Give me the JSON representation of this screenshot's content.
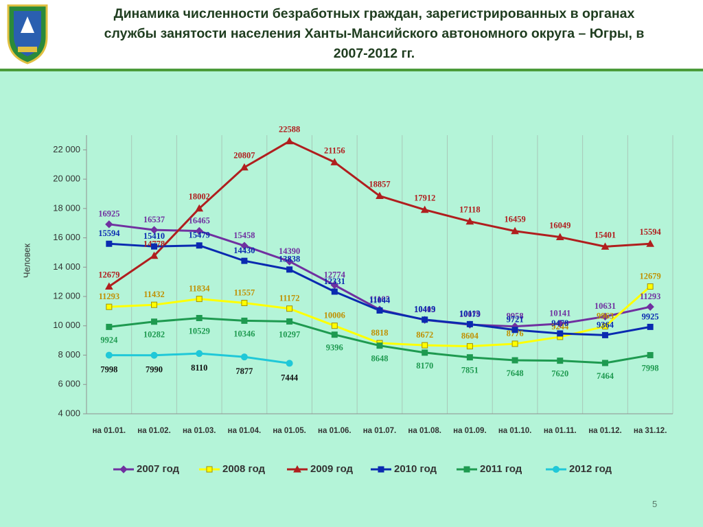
{
  "title": "Динамика численности безработных граждан, зарегистрированных в органах службы занятости населения Ханты-Мансийского автономного округа – Югры, в  2007-2012 гг.",
  "page_number": "5",
  "chart_data": {
    "type": "line",
    "y_label": "Человек",
    "categories": [
      "на 01.01.",
      "на 01.02.",
      "на 01.03.",
      "на 01.04.",
      "на 01.05.",
      "на 01.06.",
      "на 01.07.",
      "на 01.08.",
      "на 01.09.",
      "на 01.10.",
      "на 01.11.",
      "на 01.12.",
      "на 31.12."
    ],
    "ylim": [
      4000,
      23000
    ],
    "yticks": [
      {
        "value": 4000,
        "label": "4 000"
      },
      {
        "value": 6000,
        "label": "6 000"
      },
      {
        "value": 8000,
        "label": "8 000"
      },
      {
        "value": 10000,
        "label": "10 000"
      },
      {
        "value": 12000,
        "label": "12 000"
      },
      {
        "value": 14000,
        "label": "14 000"
      },
      {
        "value": 16000,
        "label": "16 000"
      },
      {
        "value": 18000,
        "label": "18 000"
      },
      {
        "value": 20000,
        "label": "20 000"
      },
      {
        "value": 22000,
        "label": "22 000"
      }
    ],
    "legend": "bottom",
    "series": [
      {
        "name": "2007 год",
        "color": "#7030a0",
        "marker": "diamond",
        "values": [
          16925,
          16537,
          16465,
          15458,
          14390,
          12774,
          11105,
          10403,
          10079,
          9958,
          10141,
          10631,
          11293
        ]
      },
      {
        "name": "2008 год",
        "color": "#ffff00",
        "marker": "square",
        "values": [
          11293,
          11432,
          11834,
          11557,
          11172,
          10006,
          8818,
          8672,
          8604,
          8776,
          9244,
          9963,
          12679
        ]
      },
      {
        "name": "2009 год",
        "color": "#b01e1e",
        "marker": "triangle",
        "values": [
          12679,
          14778,
          18002,
          20807,
          22588,
          21156,
          18857,
          17912,
          17118,
          16459,
          16049,
          15401,
          15594
        ]
      },
      {
        "name": "2010 год",
        "color": "#0a2ab0",
        "marker": "square",
        "values": [
          15594,
          15410,
          15479,
          14430,
          13838,
          12331,
          11044,
          10419,
          10113,
          9721,
          9478,
          9364,
          9925
        ]
      },
      {
        "name": "2011 год",
        "color": "#1e9a50",
        "marker": "square",
        "values": [
          9924,
          10282,
          10529,
          10346,
          10297,
          9396,
          8648,
          8170,
          7851,
          7648,
          7620,
          7464,
          7998
        ]
      },
      {
        "name": "2012 год",
        "color": "#20c8d8",
        "marker": "circle",
        "values": [
          7998,
          7990,
          8110,
          7877,
          7444,
          null,
          null,
          null,
          null,
          null,
          null,
          null,
          null
        ]
      }
    ]
  }
}
